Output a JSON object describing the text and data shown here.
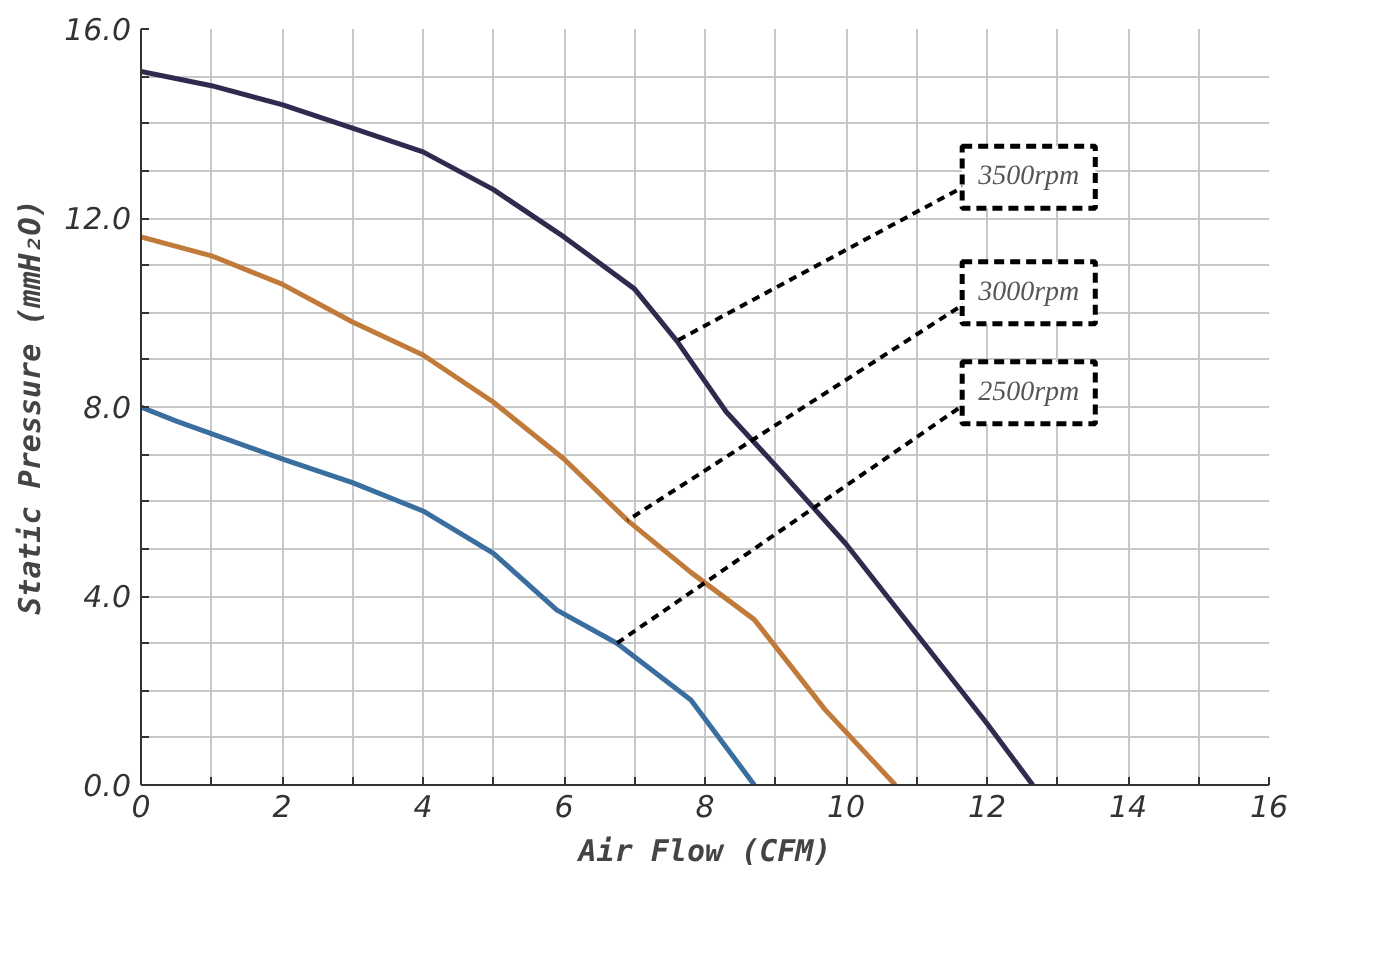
{
  "chart_data": {
    "type": "line",
    "xlabel": "Air Flow (CFM)",
    "ylabel": "Static Pressure (mmH₂O)",
    "xlim": [
      0,
      16
    ],
    "ylim": [
      0,
      16
    ],
    "xticks": [
      0,
      {
        "value": 1,
        "label": null
      },
      2,
      {
        "value": 3,
        "label": null
      },
      4,
      {
        "value": 5,
        "label": null
      },
      6,
      {
        "value": 7,
        "label": null
      },
      8,
      {
        "value": 9,
        "label": null
      },
      10,
      {
        "value": 11,
        "label": null
      },
      12,
      {
        "value": 13,
        "label": null
      },
      14,
      {
        "value": 15,
        "label": null
      },
      16
    ],
    "yticks": [
      {
        "value": 0,
        "label": "0.0"
      },
      {
        "value": 1,
        "label": null
      },
      {
        "value": 2,
        "label": null
      },
      {
        "value": 3,
        "label": null
      },
      {
        "value": 4,
        "label": "4.0"
      },
      {
        "value": 5,
        "label": null
      },
      {
        "value": 6,
        "label": null
      },
      {
        "value": 7,
        "label": null
      },
      {
        "value": 8,
        "label": "8.0"
      },
      {
        "value": 9,
        "label": null
      },
      {
        "value": 10,
        "label": null
      },
      {
        "value": 11,
        "label": null
      },
      {
        "value": 12,
        "label": "12.0"
      },
      {
        "value": 13,
        "label": null
      },
      {
        "value": 14,
        "label": null
      },
      {
        "value": 15,
        "label": null
      },
      {
        "value": 16,
        "label": "16.0"
      }
    ],
    "grid": true,
    "marker": "none",
    "line_style": "solid",
    "series": [
      {
        "color": "#2e2b4f",
        "x": [
          0,
          1,
          2,
          3,
          4,
          5,
          6,
          7,
          7.6,
          8.3,
          9.1,
          10,
          11,
          12,
          12.65
        ],
        "values": [
          15.1,
          14.8,
          14.4,
          13.9,
          13.4,
          12.6,
          11.6,
          10.5,
          9.4,
          7.9,
          6.6,
          5.1,
          3.2,
          1.3,
          0
        ]
      },
      {
        "color": "#c07a3a",
        "x": [
          0,
          1,
          2,
          3,
          4,
          5,
          6,
          6.9,
          7.8,
          8.7,
          9.7,
          10.7
        ],
        "values": [
          11.6,
          11.2,
          10.6,
          9.8,
          9.1,
          8.1,
          6.9,
          5.6,
          4.5,
          3.5,
          1.6,
          0
        ]
      },
      {
        "color": "#3a6e9f",
        "x": [
          0,
          0.5,
          2,
          3,
          4,
          5,
          5.9,
          6.75,
          7.8,
          8.7
        ],
        "values": [
          8.0,
          7.7,
          6.9,
          6.4,
          5.8,
          4.9,
          3.7,
          3.0,
          1.8,
          0
        ]
      }
    ],
    "annotations": [
      {
        "text": "3500rpm",
        "x": 7.6,
        "y": 9.4
      },
      {
        "text": "3000rpm",
        "x": 6.9,
        "y": 5.6
      },
      {
        "text": "2500rpm",
        "x": 6.75,
        "y": 3.0
      }
    ]
  }
}
